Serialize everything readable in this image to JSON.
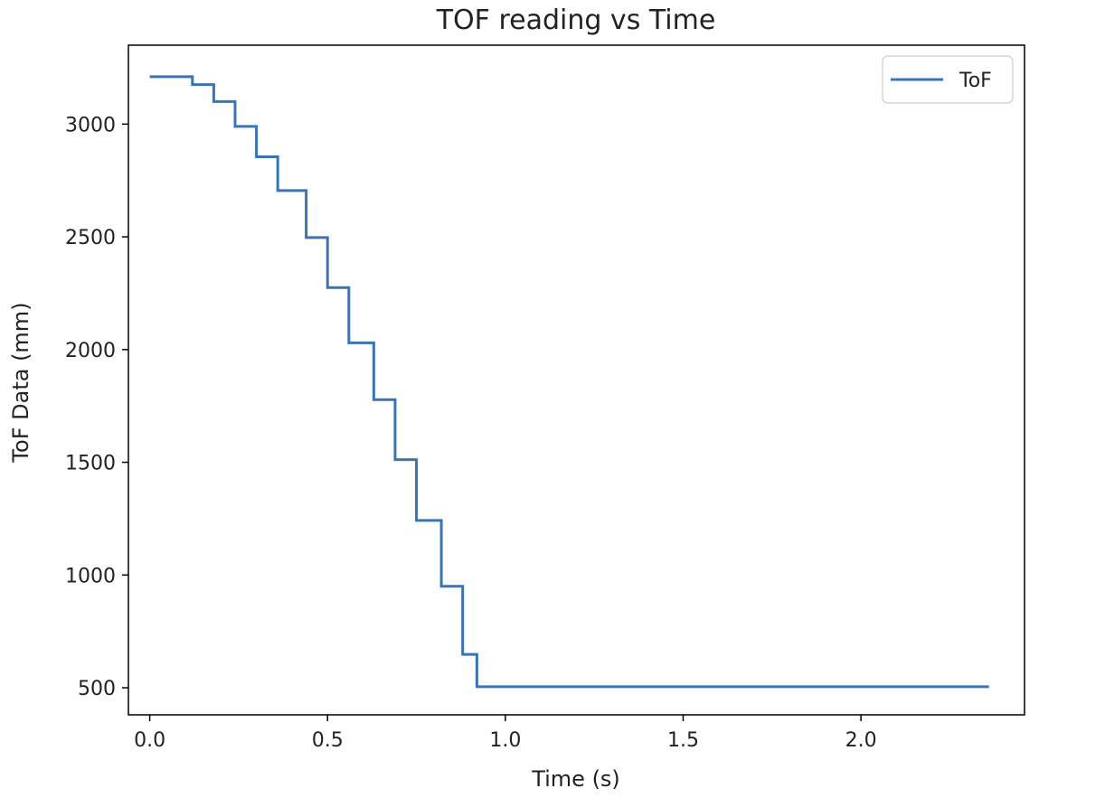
{
  "chart_data": {
    "type": "line",
    "title": "TOF reading vs Time",
    "xlabel": "Time (s)",
    "ylabel": "ToF Data (mm)",
    "xlim": [
      -0.06,
      2.46
    ],
    "ylim": [
      380,
      3350
    ],
    "xticks": [
      0.0,
      0.5,
      1.0,
      1.5,
      2.0
    ],
    "xtick_labels": [
      "0.0",
      "0.5",
      "1.0",
      "1.5",
      "2.0"
    ],
    "yticks": [
      500,
      1000,
      1500,
      2000,
      2500,
      3000
    ],
    "ytick_labels": [
      "500",
      "1000",
      "1500",
      "2000",
      "2500",
      "3000"
    ],
    "grid": false,
    "legend_position": "top-right",
    "line_color": "#3a75b0",
    "series": [
      {
        "name": "ToF",
        "step": "post",
        "x": [
          0.0,
          0.12,
          0.18,
          0.24,
          0.3,
          0.36,
          0.44,
          0.5,
          0.56,
          0.63,
          0.69,
          0.75,
          0.82,
          0.88,
          0.92,
          2.36
        ],
        "y": [
          3210,
          3175,
          3100,
          2990,
          2855,
          2705,
          2497,
          2275,
          2030,
          1778,
          1512,
          1242,
          950,
          648,
          505,
          505
        ]
      }
    ]
  }
}
